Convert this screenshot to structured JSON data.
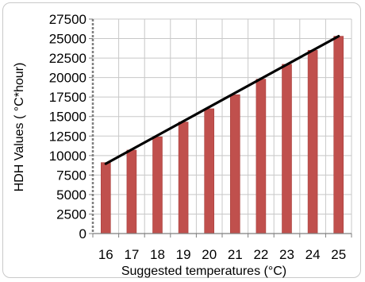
{
  "chart_data": {
    "type": "bar",
    "categories": [
      "16",
      "17",
      "18",
      "19",
      "20",
      "21",
      "22",
      "23",
      "24",
      "25"
    ],
    "values": [
      9100,
      10700,
      12400,
      14300,
      16000,
      17800,
      19800,
      21700,
      23500,
      25300
    ],
    "trendline": {
      "type": "linear",
      "y_start": 8950,
      "y_end": 25300
    },
    "xlabel": "Suggested temperatures (°C)",
    "ylabel": "HDH Values ( °C*hour)",
    "ylim": [
      0,
      27500
    ],
    "y_ticks": [
      "0",
      "2500",
      "5000",
      "7500",
      "10000",
      "12500",
      "15000",
      "17500",
      "20000",
      "22500",
      "25000",
      "27500"
    ],
    "grid": true,
    "legend": "none",
    "colors": {
      "bar": "#c0504d",
      "bar_edge": "#a8403d",
      "trendline": "#000000",
      "grid": "#c8c8c8",
      "axis": "#7f7f7f"
    }
  }
}
